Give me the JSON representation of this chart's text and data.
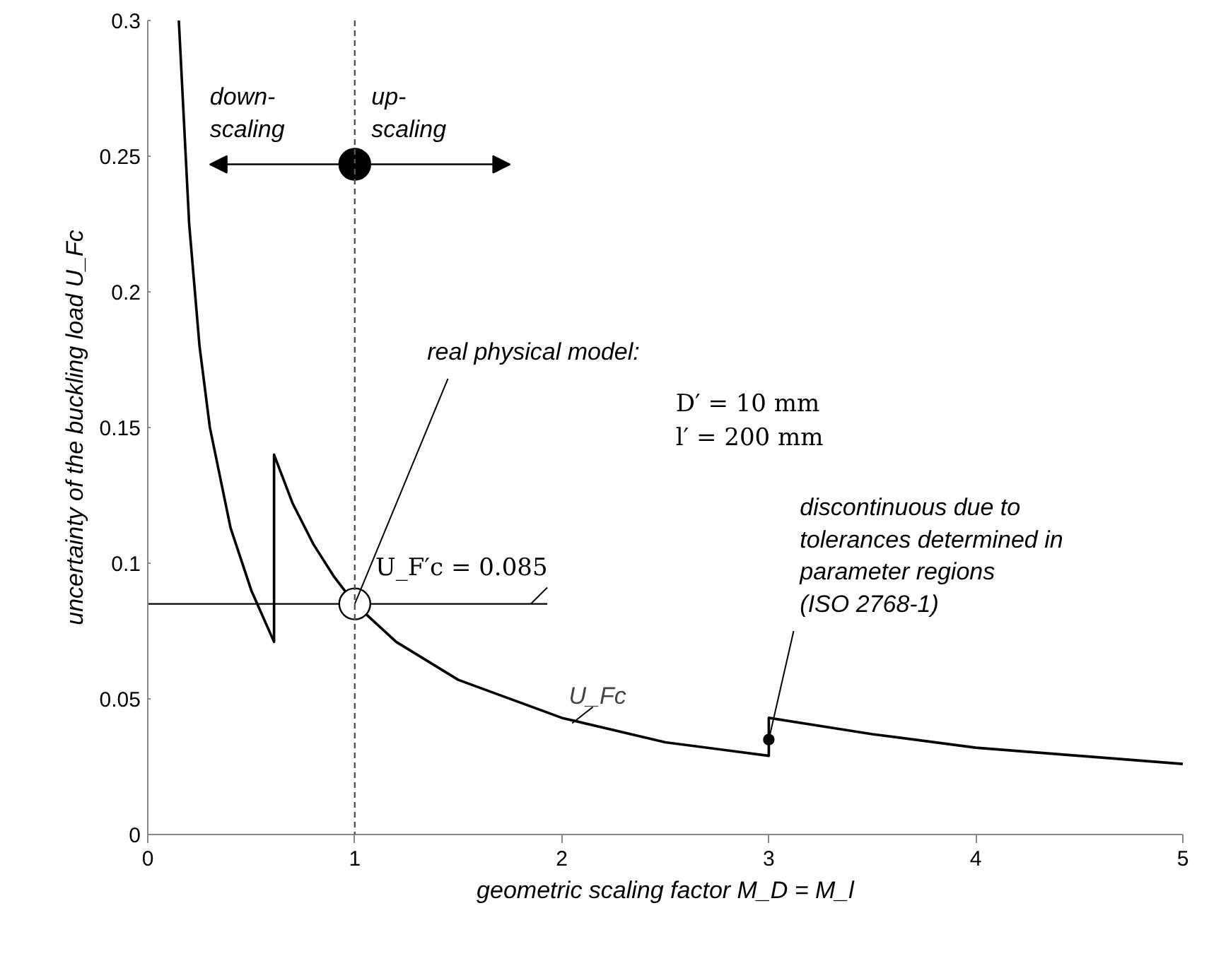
{
  "chart_data": {
    "type": "line",
    "xlabel": "geometric scaling factor M_D = M_l",
    "ylabel": "uncertainty of the buckling load U_Fc",
    "xlim": [
      0,
      5
    ],
    "ylim": [
      0,
      0.3
    ],
    "xticks": [
      0,
      1,
      2,
      3,
      4,
      5
    ],
    "yticks": [
      0,
      0.05,
      0.1,
      0.15,
      0.2,
      0.25,
      0.3
    ],
    "grid": false,
    "series": [
      {
        "name": "U_Fc",
        "color": "#000000",
        "marker": "none",
        "x": [
          0.15,
          0.2,
          0.25,
          0.3,
          0.4,
          0.5,
          0.61,
          0.61,
          0.7,
          0.8,
          0.9,
          1,
          1.2,
          1.5,
          2,
          2.5,
          3,
          3,
          3.5,
          4,
          4.5,
          5
        ],
        "values": [
          0.3,
          0.225,
          0.18,
          0.15,
          0.113,
          0.09,
          0.071,
          0.14,
          0.122,
          0.107,
          0.095,
          0.085,
          0.071,
          0.057,
          0.043,
          0.034,
          0.029,
          0.043,
          0.037,
          0.032,
          0.029,
          0.026
        ]
      },
      {
        "color": "#000000",
        "marker": "none",
        "x": [
          0,
          1.93
        ],
        "values": [
          0.085,
          0.085
        ]
      },
      {
        "type": "scatter",
        "color": "#000000",
        "marker": "circle",
        "x": [
          1
        ],
        "values": [
          0.247
        ]
      },
      {
        "type": "scatter",
        "color": "#ffffff",
        "marker": "circle",
        "x": [
          1
        ],
        "values": [
          0.085
        ]
      },
      {
        "type": "scatter",
        "color": "#000000",
        "marker": "circle",
        "x": [
          3
        ],
        "values": [
          0.035
        ]
      }
    ],
    "ref_lines": [
      {
        "axis": "x",
        "value": 1,
        "color": "#555555",
        "line_style": "dashed"
      }
    ],
    "annotations": [
      "down-\nscaling",
      "up-\nscaling",
      {
        "text": "real physical model:",
        "x": 1,
        "y": 0.085
      },
      "D′ = 10 mm\nl′ = 200 mm",
      {
        "text": "U_F′c = 0.085",
        "x": 1.85,
        "y": 0.085
      },
      {
        "text": "discontinuous due to\ntolerances determined in\nparameter regions\n(ISO 2768-1)",
        "x": 3,
        "y": 0.035
      }
    ]
  }
}
